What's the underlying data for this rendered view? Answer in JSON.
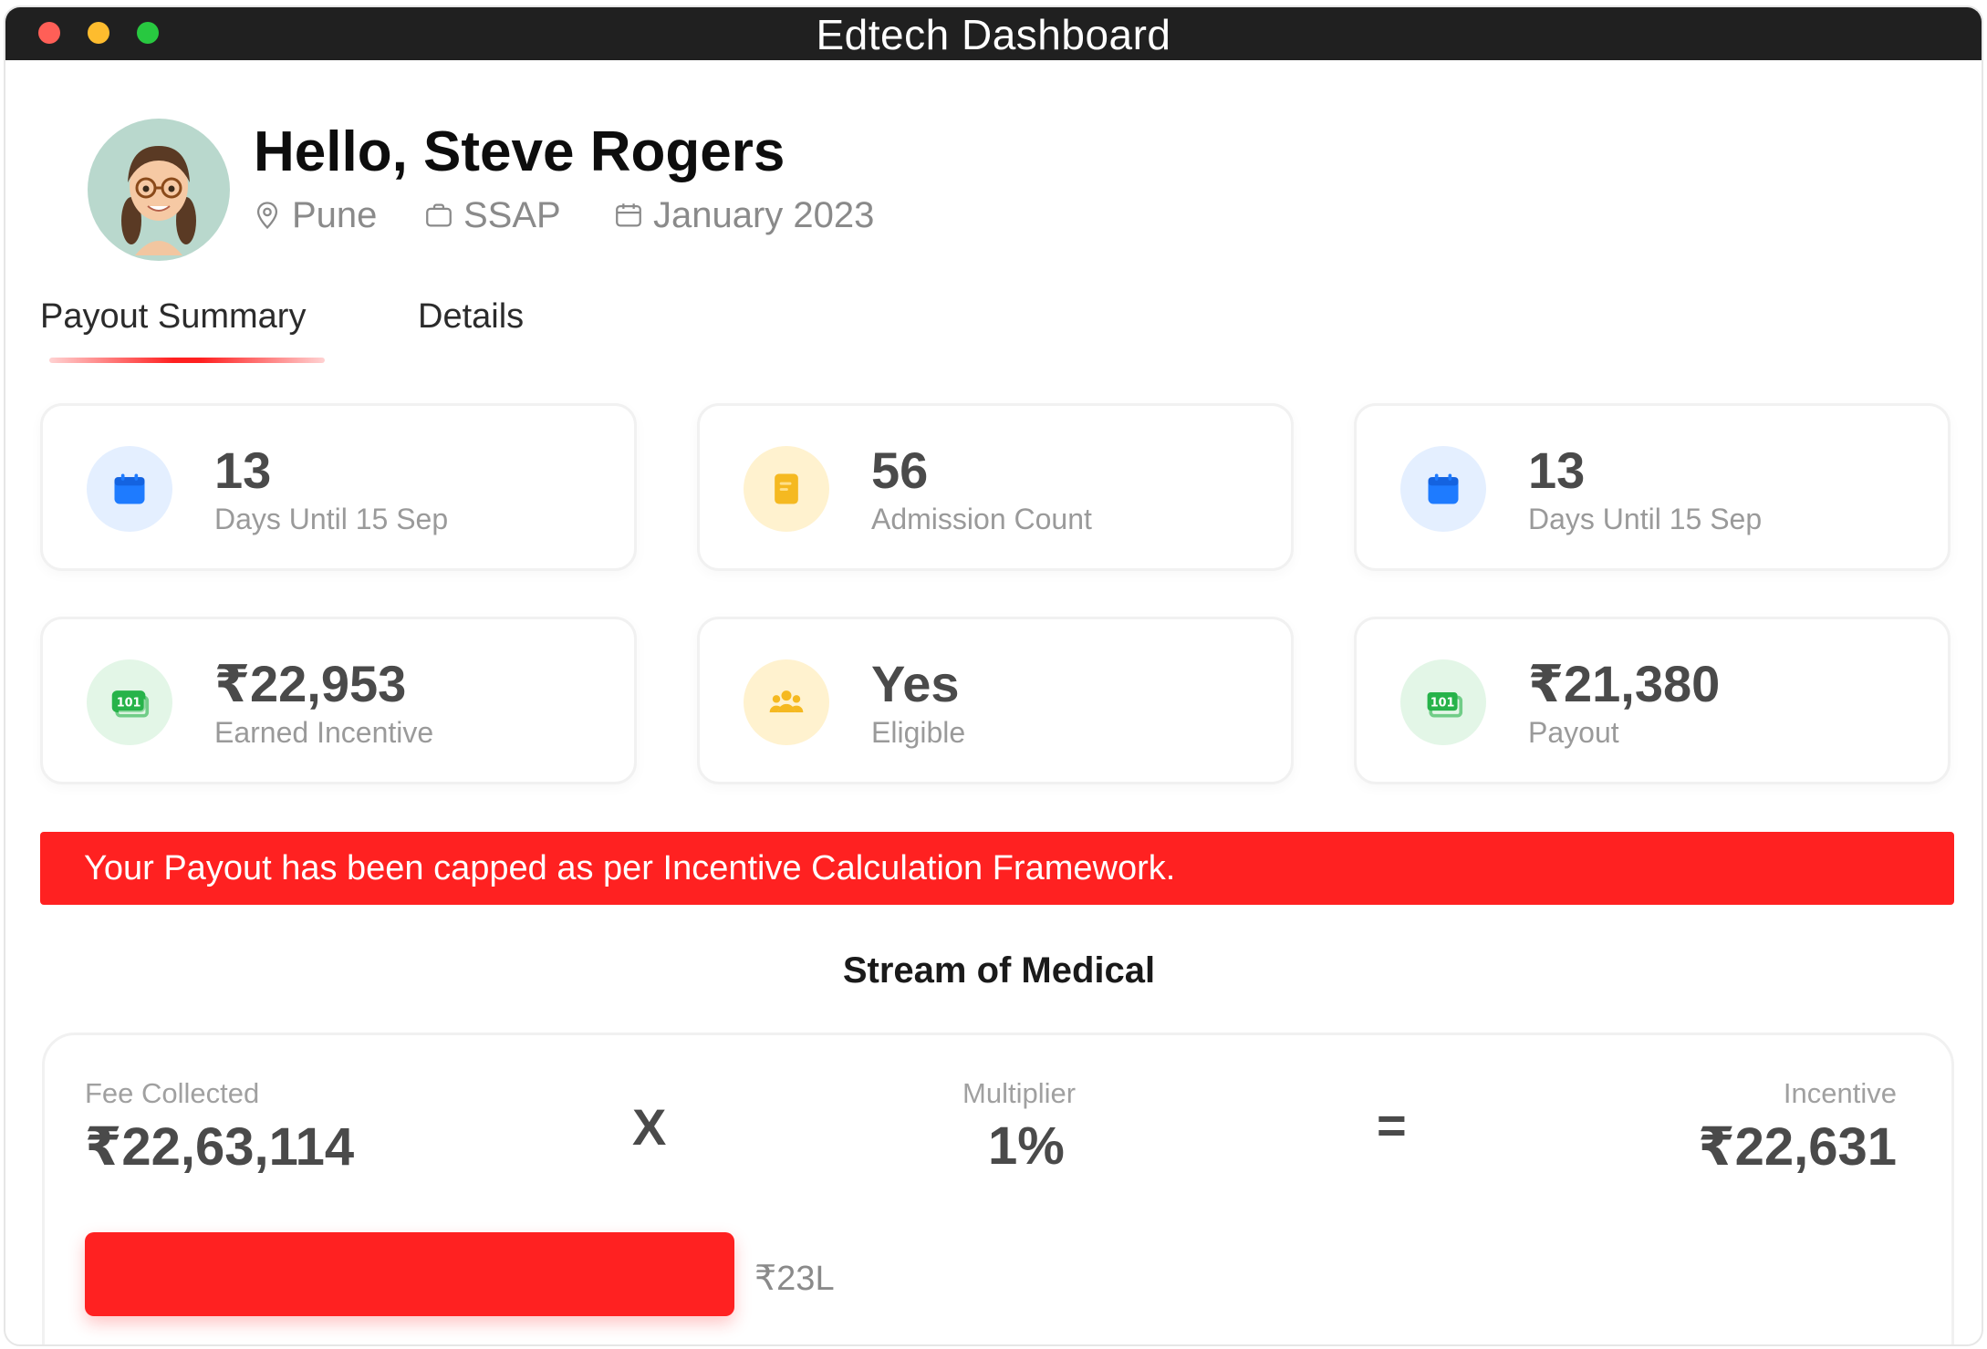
{
  "window": {
    "title": "Edtech Dashboard"
  },
  "header": {
    "greeting": "Hello, Steve Rogers",
    "location": "Pune",
    "program": "SSAP",
    "period": "January 2023"
  },
  "tabs": [
    {
      "label": "Payout Summary",
      "active": true
    },
    {
      "label": "Details",
      "active": false
    }
  ],
  "stats": [
    {
      "value": "13",
      "label": "Days Until 15 Sep",
      "icon": "calendar-icon"
    },
    {
      "value": "56",
      "label": "Admission Count",
      "icon": "notebook-icon"
    },
    {
      "value": "13",
      "label": "Days Until 15 Sep",
      "icon": "calendar-icon"
    },
    {
      "value": "₹22,953",
      "label": "Earned Incentive",
      "icon": "cash-icon"
    },
    {
      "value": "Yes",
      "label": "Eligible",
      "icon": "group-icon"
    },
    {
      "value": "₹21,380",
      "label": "Payout",
      "icon": "cash-icon"
    }
  ],
  "alert": {
    "message": "Your Payout has been capped as per Incentive Calculation Framework."
  },
  "stream": {
    "title": "Stream of Medical",
    "fee_label": "Fee Collected",
    "fee_value": "₹22,63,114",
    "times_symbol": "X",
    "multiplier_label": "Multiplier",
    "multiplier_value": "1%",
    "equals_symbol": "=",
    "incentive_label": "Incentive",
    "incentive_value": "₹22,631",
    "progress_label": "₹23L",
    "progress_fraction": 1.0
  },
  "colors": {
    "accent_red": "#ff2121",
    "blue": "#1e7bff",
    "yellow": "#f5b921",
    "green": "#27b34a"
  }
}
